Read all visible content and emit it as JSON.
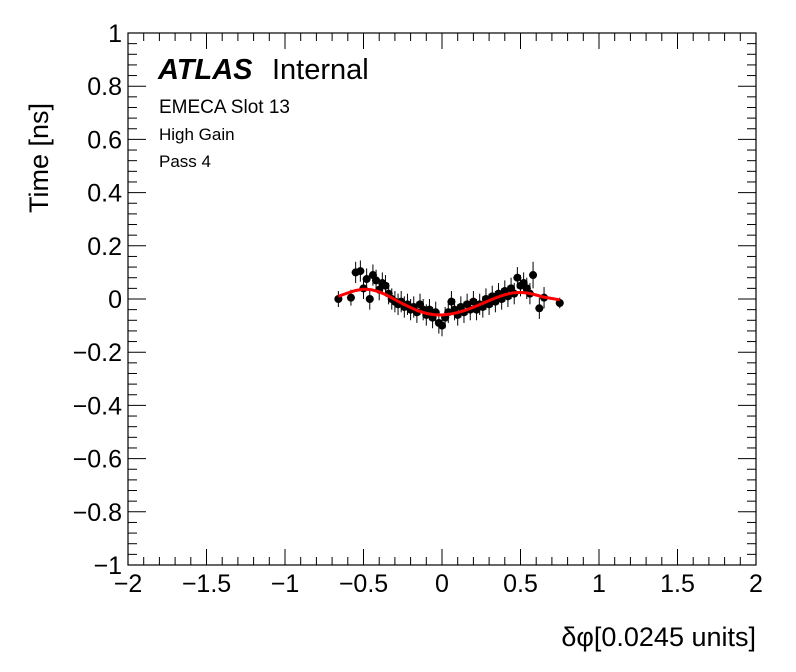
{
  "chart_data": {
    "type": "scatter",
    "xlabel": "δφ[0.0245 units]",
    "ylabel": "Time [ns]",
    "xlim": [
      -2,
      2
    ],
    "ylim": [
      -1,
      1
    ],
    "xticks": [
      "−2",
      "−1.5",
      "−1",
      "−0.5",
      "0",
      "0.5",
      "1",
      "1.5",
      "2"
    ],
    "yticks": [
      "−1",
      "−0.8",
      "−0.6",
      "−0.4",
      "−0.2",
      "0",
      "0.2",
      "0.4",
      "0.6",
      "0.8",
      "1"
    ],
    "atlas_label": "ATLAS",
    "atlas_suffix": "Internal",
    "annotations": [
      "EMECA Slot 13",
      "High Gain",
      "Pass 4"
    ],
    "colors": {
      "points": "#000000",
      "fit": "#ff0000"
    },
    "series": [
      {
        "marker": "circle",
        "error_bars": true,
        "points": [
          {
            "x": -0.66,
            "y": 0.0,
            "err": 0.03
          },
          {
            "x": -0.58,
            "y": 0.005,
            "err": 0.03
          },
          {
            "x": -0.55,
            "y": 0.1,
            "err": 0.04
          },
          {
            "x": -0.52,
            "y": 0.105,
            "err": 0.04
          },
          {
            "x": -0.5,
            "y": 0.04,
            "err": 0.04
          },
          {
            "x": -0.48,
            "y": 0.075,
            "err": 0.04
          },
          {
            "x": -0.46,
            "y": 0.0,
            "err": 0.04
          },
          {
            "x": -0.44,
            "y": 0.09,
            "err": 0.04
          },
          {
            "x": -0.42,
            "y": 0.07,
            "err": 0.04
          },
          {
            "x": -0.4,
            "y": 0.035,
            "err": 0.04
          },
          {
            "x": -0.38,
            "y": 0.06,
            "err": 0.04
          },
          {
            "x": -0.36,
            "y": 0.05,
            "err": 0.04
          },
          {
            "x": -0.34,
            "y": 0.02,
            "err": 0.04
          },
          {
            "x": -0.32,
            "y": 0.0,
            "err": 0.04
          },
          {
            "x": -0.3,
            "y": -0.01,
            "err": 0.04
          },
          {
            "x": -0.28,
            "y": -0.02,
            "err": 0.04
          },
          {
            "x": -0.26,
            "y": -0.01,
            "err": 0.04
          },
          {
            "x": -0.24,
            "y": -0.03,
            "err": 0.04
          },
          {
            "x": -0.22,
            "y": -0.02,
            "err": 0.04
          },
          {
            "x": -0.2,
            "y": -0.04,
            "err": 0.04
          },
          {
            "x": -0.18,
            "y": -0.03,
            "err": 0.04
          },
          {
            "x": -0.16,
            "y": -0.05,
            "err": 0.04
          },
          {
            "x": -0.14,
            "y": -0.02,
            "err": 0.04
          },
          {
            "x": -0.12,
            "y": -0.04,
            "err": 0.04
          },
          {
            "x": -0.1,
            "y": -0.06,
            "err": 0.04
          },
          {
            "x": -0.08,
            "y": -0.04,
            "err": 0.04
          },
          {
            "x": -0.06,
            "y": -0.07,
            "err": 0.04
          },
          {
            "x": -0.04,
            "y": -0.05,
            "err": 0.04
          },
          {
            "x": -0.02,
            "y": -0.09,
            "err": 0.04
          },
          {
            "x": 0.0,
            "y": -0.1,
            "err": 0.04
          },
          {
            "x": 0.02,
            "y": -0.07,
            "err": 0.04
          },
          {
            "x": 0.04,
            "y": -0.05,
            "err": 0.04
          },
          {
            "x": 0.06,
            "y": -0.01,
            "err": 0.04
          },
          {
            "x": 0.08,
            "y": -0.04,
            "err": 0.04
          },
          {
            "x": 0.1,
            "y": -0.06,
            "err": 0.04
          },
          {
            "x": 0.12,
            "y": -0.03,
            "err": 0.04
          },
          {
            "x": 0.14,
            "y": -0.05,
            "err": 0.04
          },
          {
            "x": 0.16,
            "y": -0.02,
            "err": 0.04
          },
          {
            "x": 0.18,
            "y": -0.04,
            "err": 0.04
          },
          {
            "x": 0.2,
            "y": -0.01,
            "err": 0.04
          },
          {
            "x": 0.22,
            "y": -0.04,
            "err": 0.04
          },
          {
            "x": 0.24,
            "y": -0.02,
            "err": 0.04
          },
          {
            "x": 0.26,
            "y": -0.03,
            "err": 0.04
          },
          {
            "x": 0.28,
            "y": 0.0,
            "err": 0.04
          },
          {
            "x": 0.3,
            "y": -0.02,
            "err": 0.04
          },
          {
            "x": 0.32,
            "y": 0.01,
            "err": 0.04
          },
          {
            "x": 0.34,
            "y": -0.01,
            "err": 0.04
          },
          {
            "x": 0.36,
            "y": 0.02,
            "err": 0.04
          },
          {
            "x": 0.38,
            "y": 0.0,
            "err": 0.04
          },
          {
            "x": 0.4,
            "y": 0.03,
            "err": 0.04
          },
          {
            "x": 0.42,
            "y": 0.01,
            "err": 0.04
          },
          {
            "x": 0.44,
            "y": 0.04,
            "err": 0.04
          },
          {
            "x": 0.46,
            "y": 0.02,
            "err": 0.04
          },
          {
            "x": 0.48,
            "y": 0.08,
            "err": 0.04
          },
          {
            "x": 0.5,
            "y": 0.05,
            "err": 0.04
          },
          {
            "x": 0.52,
            "y": 0.06,
            "err": 0.04
          },
          {
            "x": 0.54,
            "y": 0.04,
            "err": 0.04
          },
          {
            "x": 0.56,
            "y": 0.02,
            "err": 0.04
          },
          {
            "x": 0.58,
            "y": 0.09,
            "err": 0.05
          },
          {
            "x": 0.62,
            "y": -0.035,
            "err": 0.04
          },
          {
            "x": 0.65,
            "y": 0.005,
            "err": 0.04
          },
          {
            "x": 0.75,
            "y": -0.015,
            "err": 0.02
          }
        ]
      }
    ],
    "fit": {
      "x": [
        -0.66,
        -0.6,
        -0.55,
        -0.5,
        -0.45,
        -0.4,
        -0.35,
        -0.3,
        -0.25,
        -0.2,
        -0.15,
        -0.1,
        -0.05,
        0.0,
        0.05,
        0.1,
        0.15,
        0.2,
        0.25,
        0.3,
        0.35,
        0.4,
        0.45,
        0.5,
        0.55,
        0.6,
        0.65,
        0.7,
        0.75
      ],
      "y": [
        0.01,
        0.023,
        0.032,
        0.037,
        0.035,
        0.027,
        0.014,
        -0.002,
        -0.018,
        -0.032,
        -0.045,
        -0.054,
        -0.059,
        -0.06,
        -0.057,
        -0.051,
        -0.042,
        -0.031,
        -0.019,
        -0.006,
        0.006,
        0.016,
        0.023,
        0.025,
        0.022,
        0.015,
        0.007,
        0.002,
        -0.003
      ]
    }
  }
}
